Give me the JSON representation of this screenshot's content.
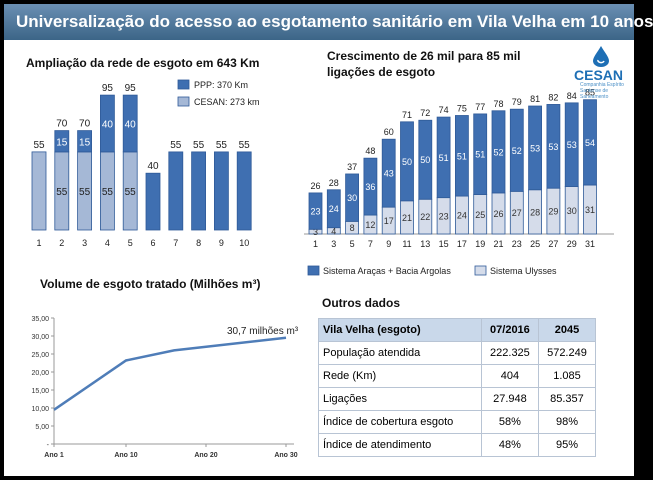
{
  "title": "Universalização do acesso ao esgotamento sanitário em Vila Velha em 10 anos",
  "logo": {
    "name": "CESAN",
    "tagline": "Companhia Espírito Santense de Saneamento"
  },
  "colors": {
    "blue": "#3f6fb1",
    "grey": "#a5b8d6",
    "dark_blue": "#2f5a98",
    "line": "#4f7db8"
  },
  "chart_data": [
    {
      "type": "bar",
      "title": "Ampliação da rede de esgoto em 643 Km",
      "categories": [
        "1",
        "2",
        "3",
        "4",
        "5",
        "6",
        "7",
        "8",
        "9",
        "10"
      ],
      "series": [
        {
          "name": "CESAN: 273 km",
          "values": [
            55,
            55,
            55,
            55,
            55,
            null,
            null,
            null,
            null,
            null
          ]
        },
        {
          "name": "PPP: 370 Km",
          "values": [
            null,
            15,
            15,
            40,
            40,
            40,
            55,
            55,
            55,
            55
          ]
        }
      ],
      "totals": [
        55,
        70,
        70,
        95,
        95,
        40,
        55,
        55,
        55,
        55
      ],
      "legend": "top-right"
    },
    {
      "type": "bar",
      "title": "Crescimento de 26 mil para 85 mil ligações de esgoto",
      "categories": [
        "1",
        "3",
        "5",
        "7",
        "9",
        "11",
        "13",
        "15",
        "17",
        "19",
        "21",
        "23",
        "25",
        "27",
        "29",
        "31"
      ],
      "series": [
        {
          "name": "Sistema Araças + Bacia Argolas",
          "values": [
            23,
            24,
            30,
            36,
            43,
            50,
            50,
            51,
            51,
            51,
            52,
            52,
            53,
            53,
            53,
            54
          ]
        },
        {
          "name": "Sistema Ulysses",
          "values": [
            3,
            4,
            8,
            12,
            17,
            21,
            22,
            23,
            24,
            25,
            26,
            27,
            28,
            29,
            30,
            31
          ]
        }
      ],
      "totals": [
        26,
        28,
        37,
        48,
        60,
        71,
        72,
        74,
        75,
        77,
        78,
        79,
        81,
        82,
        84,
        85
      ],
      "legend": "bottom"
    },
    {
      "type": "line",
      "title": "Volume de esgoto tratado (Milhões m³)",
      "x": [
        1,
        10,
        16,
        30
      ],
      "xticks": [
        "Ano 1",
        "Ano 10",
        "Ano 20",
        "Ano 30"
      ],
      "y": [
        9.5,
        23.2,
        26.0,
        29.5
      ],
      "yticks": [
        "-",
        "5,00",
        "10,00",
        "15,00",
        "20,00",
        "25,00",
        "30,00",
        "35,00"
      ],
      "ylim": [
        0,
        35
      ],
      "xlim": [
        1,
        31
      ],
      "annotation": "30,7 milhões m³"
    }
  ],
  "other_data": {
    "title": "Outros dados",
    "header": [
      "Vila Velha (esgoto)",
      "07/2016",
      "2045"
    ],
    "rows": [
      [
        "População atendida",
        "222.325",
        "572.249"
      ],
      [
        "Rede (Km)",
        "404",
        "1.085"
      ],
      [
        "Ligações",
        "27.948",
        "85.357"
      ],
      [
        "Índice de cobertura esgoto",
        "58%",
        "98%"
      ],
      [
        "Índice de atendimento",
        "48%",
        "95%"
      ]
    ]
  }
}
